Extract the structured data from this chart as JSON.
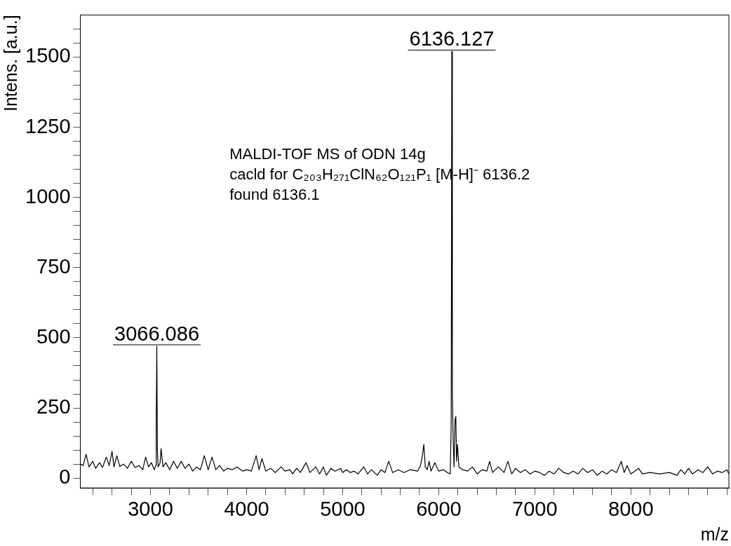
{
  "chart_data": {
    "type": "line",
    "xlabel": "m/z",
    "ylabel": "Intens. [a.u.]",
    "color": "#000000",
    "marker": "none",
    "line_style": "solid",
    "grid": false,
    "legend": false,
    "xlim": [
      2270,
      9020
    ],
    "ylim": [
      -35,
      1650
    ],
    "xticks": [
      {
        "value": 2400,
        "label": null
      },
      {
        "value": 2600,
        "label": null
      },
      {
        "value": 2800,
        "label": null
      },
      3000,
      {
        "value": 3200,
        "label": null
      },
      {
        "value": 3400,
        "label": null
      },
      {
        "value": 3600,
        "label": null
      },
      {
        "value": 3800,
        "label": null
      },
      4000,
      {
        "value": 4200,
        "label": null
      },
      {
        "value": 4400,
        "label": null
      },
      {
        "value": 4600,
        "label": null
      },
      {
        "value": 4800,
        "label": null
      },
      5000,
      {
        "value": 5200,
        "label": null
      },
      {
        "value": 5400,
        "label": null
      },
      {
        "value": 5600,
        "label": null
      },
      {
        "value": 5800,
        "label": null
      },
      6000,
      {
        "value": 6200,
        "label": null
      },
      {
        "value": 6400,
        "label": null
      },
      {
        "value": 6600,
        "label": null
      },
      {
        "value": 6800,
        "label": null
      },
      7000,
      {
        "value": 7200,
        "label": null
      },
      {
        "value": 7400,
        "label": null
      },
      {
        "value": 7600,
        "label": null
      },
      {
        "value": 7800,
        "label": null
      },
      8000,
      {
        "value": 8200,
        "label": null
      },
      {
        "value": 8400,
        "label": null
      },
      {
        "value": 8600,
        "label": null
      },
      {
        "value": 8800,
        "label": null
      },
      {
        "value": 9000,
        "label": null
      }
    ],
    "yticks": [
      0,
      {
        "value": 50,
        "label": null
      },
      {
        "value": 100,
        "label": null
      },
      {
        "value": 150,
        "label": null
      },
      {
        "value": 200,
        "label": null
      },
      250,
      {
        "value": 300,
        "label": null
      },
      {
        "value": 350,
        "label": null
      },
      {
        "value": 400,
        "label": null
      },
      {
        "value": 450,
        "label": null
      },
      500,
      {
        "value": 550,
        "label": null
      },
      {
        "value": 600,
        "label": null
      },
      {
        "value": 650,
        "label": null
      },
      {
        "value": 700,
        "label": null
      },
      750,
      {
        "value": 800,
        "label": null
      },
      {
        "value": 850,
        "label": null
      },
      {
        "value": 900,
        "label": null
      },
      {
        "value": 950,
        "label": null
      },
      1000,
      {
        "value": 1050,
        "label": null
      },
      {
        "value": 1100,
        "label": null
      },
      {
        "value": 1150,
        "label": null
      },
      {
        "value": 1200,
        "label": null
      },
      1250,
      {
        "value": 1300,
        "label": null
      },
      {
        "value": 1350,
        "label": null
      },
      {
        "value": 1400,
        "label": null
      },
      {
        "value": 1450,
        "label": null
      },
      1500,
      {
        "value": 1550,
        "label": null
      },
      {
        "value": 1600,
        "label": null
      }
    ],
    "x": [
      2270,
      2300,
      2330,
      2360,
      2400,
      2430,
      2470,
      2500,
      2540,
      2570,
      2600,
      2620,
      2650,
      2680,
      2720,
      2760,
      2800,
      2840,
      2880,
      2920,
      2950,
      2980,
      3010,
      3040,
      3055,
      3060,
      3066,
      3072,
      3080,
      3100,
      3110,
      3130,
      3160,
      3200,
      3240,
      3280,
      3320,
      3360,
      3400,
      3440,
      3480,
      3520,
      3560,
      3600,
      3640,
      3680,
      3720,
      3760,
      3800,
      3850,
      3900,
      3960,
      4000,
      4050,
      4100,
      4130,
      4160,
      4200,
      4250,
      4300,
      4360,
      4400,
      4450,
      4480,
      4520,
      4560,
      4620,
      4660,
      4720,
      4760,
      4800,
      4830,
      4880,
      4920,
      4980,
      5000,
      5040,
      5080,
      5120,
      5160,
      5220,
      5260,
      5300,
      5360,
      5400,
      5440,
      5480,
      5520,
      5580,
      5640,
      5700,
      5780,
      5810,
      5830,
      5845,
      5860,
      5880,
      5900,
      5920,
      5960,
      6000,
      6050,
      6090,
      6120,
      6130,
      6136,
      6142,
      6150,
      6160,
      6170,
      6178,
      6186,
      6195,
      6210,
      6250,
      6300,
      6350,
      6400,
      6450,
      6500,
      6530,
      6560,
      6620,
      6680,
      6720,
      6760,
      6800,
      6850,
      6900,
      6950,
      7000,
      7050,
      7100,
      7150,
      7200,
      7250,
      7300,
      7350,
      7400,
      7450,
      7500,
      7550,
      7600,
      7650,
      7700,
      7750,
      7800,
      7850,
      7900,
      7930,
      7960,
      8000,
      8040,
      8080,
      8120,
      8200,
      8300,
      8400,
      8480,
      8520,
      8560,
      8600,
      8640,
      8700,
      8750,
      8800,
      8850,
      8900,
      8950,
      9000,
      9020
    ],
    "values": [
      50,
      45,
      85,
      40,
      60,
      35,
      55,
      38,
      75,
      45,
      95,
      40,
      80,
      42,
      50,
      35,
      60,
      38,
      45,
      30,
      75,
      40,
      55,
      30,
      45,
      200,
      470,
      100,
      40,
      55,
      105,
      40,
      55,
      30,
      60,
      35,
      60,
      35,
      50,
      25,
      40,
      30,
      80,
      30,
      75,
      30,
      45,
      25,
      35,
      30,
      40,
      25,
      30,
      25,
      80,
      30,
      70,
      25,
      35,
      20,
      40,
      25,
      30,
      15,
      35,
      20,
      55,
      20,
      40,
      15,
      40,
      10,
      35,
      25,
      35,
      20,
      30,
      20,
      25,
      15,
      40,
      15,
      30,
      10,
      30,
      20,
      60,
      20,
      30,
      20,
      30,
      25,
      45,
      80,
      120,
      40,
      30,
      60,
      25,
      55,
      25,
      30,
      20,
      15,
      200,
      1520,
      300,
      140,
      40,
      210,
      220,
      60,
      120,
      40,
      30,
      25,
      40,
      15,
      30,
      25,
      60,
      20,
      40,
      20,
      60,
      15,
      35,
      20,
      30,
      15,
      25,
      20,
      10,
      25,
      15,
      35,
      20,
      15,
      25,
      15,
      35,
      20,
      30,
      10,
      25,
      15,
      30,
      20,
      60,
      20,
      45,
      15,
      25,
      35,
      15,
      20,
      15,
      20,
      10,
      30,
      15,
      35,
      15,
      30,
      20,
      40,
      15,
      25,
      20,
      30,
      15
    ],
    "annotations": [
      {
        "text": "3066.086",
        "x": 3066,
        "y": 470
      },
      {
        "text": "6136.127",
        "x": 6136,
        "y": 1520
      },
      "MALDI-TOF MS of ODN 14g",
      "cacld for C₂₀₃H₂₇₁ClN₆₂O₁₂₁P₁ [M-H]⁻ 6136.2",
      "found 6136.1"
    ]
  }
}
